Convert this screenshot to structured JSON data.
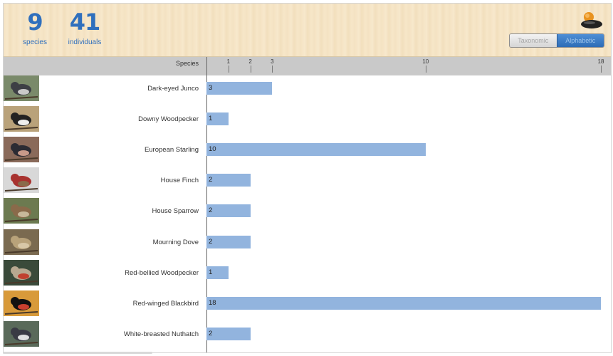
{
  "stats": {
    "species_count": "9",
    "species_label": "species",
    "individuals_count": "41",
    "individuals_label": "individuals"
  },
  "toggle": {
    "taxonomic": "Taxonomic",
    "alphabetic": "Alphabetic",
    "selected": "alphabetic"
  },
  "table": {
    "species_header": "Species"
  },
  "colors": {
    "accent": "#2f6fbd",
    "bar": "#92b4de",
    "header_bg": "#f5e3c3",
    "axis_bg": "#c9c9c9"
  },
  "chart_data": {
    "type": "bar",
    "orientation": "horizontal",
    "xlim": [
      0,
      18
    ],
    "ticks": [
      1,
      2,
      3,
      10,
      18
    ],
    "categories": [
      "Dark-eyed Junco",
      "Downy Woodpecker",
      "European Starling",
      "House Finch",
      "House Sparrow",
      "Mourning Dove",
      "Red-bellied Woodpecker",
      "Red-winged Blackbird",
      "White-breasted Nuthatch"
    ],
    "values": [
      3,
      1,
      10,
      2,
      2,
      2,
      1,
      18,
      2
    ]
  },
  "birds": [
    {
      "name": "Dark-eyed Junco",
      "count": "3",
      "thumb": "junco-photo"
    },
    {
      "name": "Downy Woodpecker",
      "count": "1",
      "thumb": "woodpecker-photo"
    },
    {
      "name": "European Starling",
      "count": "10",
      "thumb": "starling-photo"
    },
    {
      "name": "House Finch",
      "count": "2",
      "thumb": "finch-photo"
    },
    {
      "name": "House Sparrow",
      "count": "2",
      "thumb": "sparrow-photo"
    },
    {
      "name": "Mourning Dove",
      "count": "2",
      "thumb": "dove-photo"
    },
    {
      "name": "Red-bellied Woodpecker",
      "count": "1",
      "thumb": "redbellied-photo"
    },
    {
      "name": "Red-winged Blackbird",
      "count": "18",
      "thumb": "blackbird-photo"
    },
    {
      "name": "White-breasted Nuthatch",
      "count": "2",
      "thumb": "nuthatch-photo"
    }
  ]
}
